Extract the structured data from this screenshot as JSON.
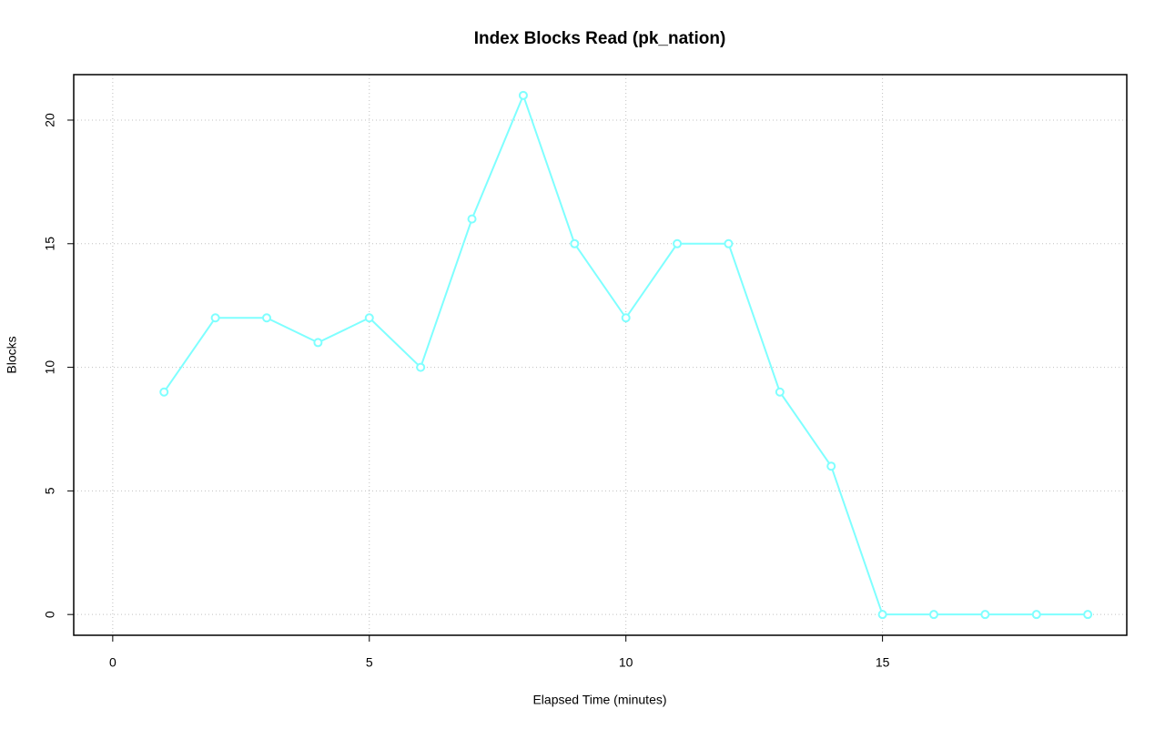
{
  "chart_data": {
    "type": "line",
    "title": "Index Blocks Read (pk_nation)",
    "x_label": "Elapsed Time (minutes)",
    "y_label": "Blocks",
    "x": [
      1,
      2,
      3,
      4,
      5,
      6,
      7,
      8,
      9,
      10,
      11,
      12,
      13,
      14,
      15,
      16,
      17,
      18,
      19
    ],
    "values": [
      9,
      12,
      12,
      11,
      12,
      10,
      16,
      21,
      15,
      12,
      15,
      15,
      9,
      6,
      0,
      0,
      0,
      0,
      0
    ],
    "color": "#7fffff",
    "xlim": [
      -0.76,
      19.76
    ],
    "xticks": [
      0,
      5,
      10,
      15
    ],
    "ylim": [
      -0.84,
      21.84
    ],
    "yticks": [
      0,
      5,
      10,
      15,
      20
    ],
    "grid": true
  }
}
